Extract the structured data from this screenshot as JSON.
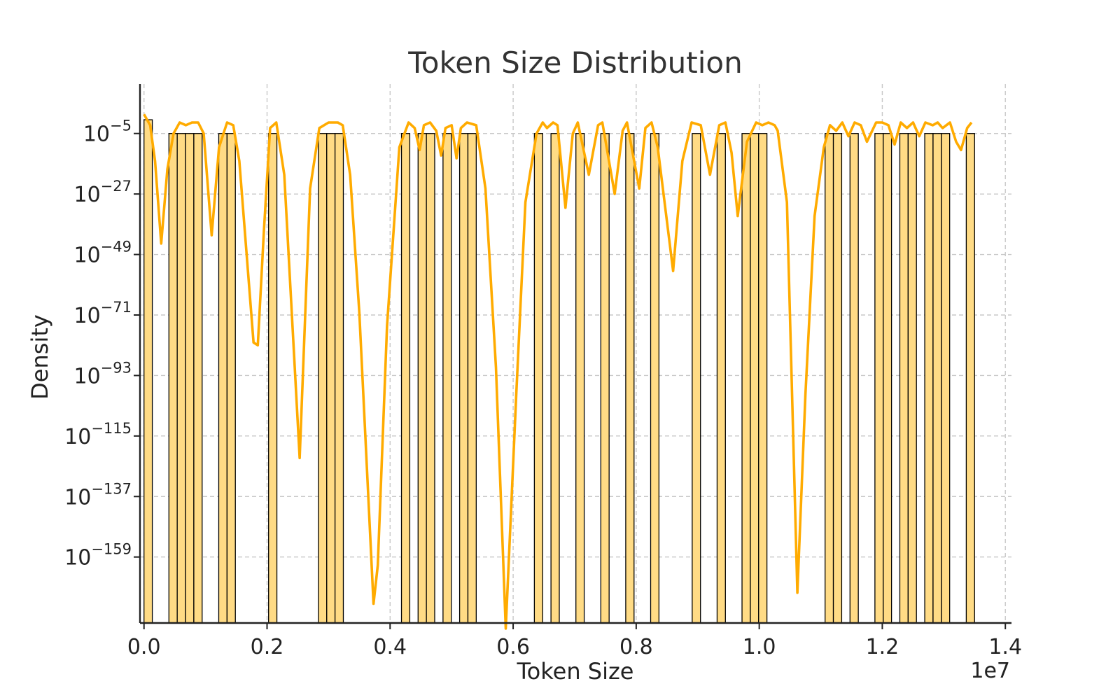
{
  "chart_data": {
    "type": "bar",
    "title": "Token Size Distribution",
    "xlabel": "Token Size",
    "ylabel": "Density",
    "x_offset_label": "1e7",
    "xlim": [
      -65000,
      14100000
    ],
    "ylog_exponent_range": [
      -183,
      13
    ],
    "yscale": "log",
    "grid": true,
    "x_ticks": [
      {
        "value": 0,
        "label": "0.0"
      },
      {
        "value": 2000000,
        "label": "0.2"
      },
      {
        "value": 4000000,
        "label": "0.4"
      },
      {
        "value": 6000000,
        "label": "0.6"
      },
      {
        "value": 8000000,
        "label": "0.8"
      },
      {
        "value": 10000000,
        "label": "1.0"
      },
      {
        "value": 12000000,
        "label": "1.2"
      },
      {
        "value": 14000000,
        "label": "1.4"
      }
    ],
    "y_ticks": [
      {
        "exponent": -5,
        "base": "10",
        "sup": "−5"
      },
      {
        "exponent": -27,
        "base": "10",
        "sup": "−27"
      },
      {
        "exponent": -49,
        "base": "10",
        "sup": "−49"
      },
      {
        "exponent": -71,
        "base": "10",
        "sup": "−71"
      },
      {
        "exponent": -93,
        "base": "10",
        "sup": "−93"
      },
      {
        "exponent": -115,
        "base": "10",
        "sup": "−115"
      },
      {
        "exponent": -137,
        "base": "10",
        "sup": "−137"
      },
      {
        "exponent": -159,
        "base": "10",
        "sup": "−159"
      }
    ],
    "histogram": {
      "name": "histogram",
      "color": "#ffdb85",
      "bin_width": 135000,
      "bins": [
        {
          "x0": 0,
          "density_exp": 0
        },
        {
          "x0": 405000,
          "density_exp": -5
        },
        {
          "x0": 540000,
          "density_exp": -5
        },
        {
          "x0": 675000,
          "density_exp": -5
        },
        {
          "x0": 810000,
          "density_exp": -5
        },
        {
          "x0": 1215000,
          "density_exp": -5
        },
        {
          "x0": 1350000,
          "density_exp": -5
        },
        {
          "x0": 2025000,
          "density_exp": -5
        },
        {
          "x0": 2835000,
          "density_exp": -5
        },
        {
          "x0": 2970000,
          "density_exp": -5
        },
        {
          "x0": 3105000,
          "density_exp": -5
        },
        {
          "x0": 4185000,
          "density_exp": -5
        },
        {
          "x0": 4455000,
          "density_exp": -5
        },
        {
          "x0": 4590000,
          "density_exp": -5
        },
        {
          "x0": 4860000,
          "density_exp": -5
        },
        {
          "x0": 5130000,
          "density_exp": -5
        },
        {
          "x0": 5265000,
          "density_exp": -5
        },
        {
          "x0": 6345000,
          "density_exp": -5
        },
        {
          "x0": 6615000,
          "density_exp": -5
        },
        {
          "x0": 7020000,
          "density_exp": -5
        },
        {
          "x0": 7425000,
          "density_exp": -5
        },
        {
          "x0": 7830000,
          "density_exp": -5
        },
        {
          "x0": 8235000,
          "density_exp": -5
        },
        {
          "x0": 8910000,
          "density_exp": -5
        },
        {
          "x0": 9315000,
          "density_exp": -5
        },
        {
          "x0": 9720000,
          "density_exp": -5
        },
        {
          "x0": 9855000,
          "density_exp": -5
        },
        {
          "x0": 9990000,
          "density_exp": -5
        },
        {
          "x0": 11070000,
          "density_exp": -5
        },
        {
          "x0": 11205000,
          "density_exp": -5
        },
        {
          "x0": 11475000,
          "density_exp": -5
        },
        {
          "x0": 11880000,
          "density_exp": -5
        },
        {
          "x0": 12015000,
          "density_exp": -5
        },
        {
          "x0": 12285000,
          "density_exp": -5
        },
        {
          "x0": 12420000,
          "density_exp": -5
        },
        {
          "x0": 12690000,
          "density_exp": -5
        },
        {
          "x0": 12825000,
          "density_exp": -5
        },
        {
          "x0": 12960000,
          "density_exp": -5
        },
        {
          "x0": 13365000,
          "density_exp": -5
        }
      ]
    },
    "series": [
      {
        "name": "kde",
        "color": "#ffab00",
        "points": [
          [
            0,
            2
          ],
          [
            100000,
            -2
          ],
          [
            180000,
            -15
          ],
          [
            280000,
            -45
          ],
          [
            380000,
            -18
          ],
          [
            480000,
            -5
          ],
          [
            580000,
            -1
          ],
          [
            680000,
            -2
          ],
          [
            780000,
            -1
          ],
          [
            880000,
            -1
          ],
          [
            970000,
            -5
          ],
          [
            1100000,
            -42
          ],
          [
            1220000,
            -10
          ],
          [
            1350000,
            -1
          ],
          [
            1450000,
            -2
          ],
          [
            1550000,
            -15
          ],
          [
            1780000,
            -81
          ],
          [
            1850000,
            -82
          ],
          [
            1950000,
            -40
          ],
          [
            2050000,
            -3
          ],
          [
            2150000,
            -1
          ],
          [
            2280000,
            -20
          ],
          [
            2530000,
            -123
          ],
          [
            2700000,
            -25
          ],
          [
            2850000,
            -3
          ],
          [
            3000000,
            -1
          ],
          [
            3150000,
            -1
          ],
          [
            3230000,
            -2
          ],
          [
            3350000,
            -20
          ],
          [
            3500000,
            -70
          ],
          [
            3730000,
            -176
          ],
          [
            3800000,
            -162
          ],
          [
            3950000,
            -75
          ],
          [
            4150000,
            -10
          ],
          [
            4300000,
            -1
          ],
          [
            4400000,
            -3
          ],
          [
            4480000,
            -11
          ],
          [
            4550000,
            -2
          ],
          [
            4650000,
            -1
          ],
          [
            4750000,
            -4
          ],
          [
            4830000,
            -13
          ],
          [
            4900000,
            -3
          ],
          [
            5000000,
            -2
          ],
          [
            5080000,
            -14
          ],
          [
            5150000,
            -3
          ],
          [
            5250000,
            -1
          ],
          [
            5400000,
            -2
          ],
          [
            5550000,
            -25
          ],
          [
            5720000,
            -90
          ],
          [
            5880000,
            -185
          ],
          [
            6050000,
            -100
          ],
          [
            6200000,
            -30
          ],
          [
            6380000,
            -5
          ],
          [
            6480000,
            -1
          ],
          [
            6550000,
            -3
          ],
          [
            6650000,
            -1
          ],
          [
            6720000,
            -2
          ],
          [
            6850000,
            -32
          ],
          [
            6970000,
            -5
          ],
          [
            7050000,
            -1
          ],
          [
            7230000,
            -20
          ],
          [
            7380000,
            -2
          ],
          [
            7450000,
            -1
          ],
          [
            7650000,
            -27
          ],
          [
            7780000,
            -4
          ],
          [
            7850000,
            -1
          ],
          [
            8050000,
            -25
          ],
          [
            8150000,
            -3
          ],
          [
            8250000,
            -1
          ],
          [
            8350000,
            -10
          ],
          [
            8600000,
            -55
          ],
          [
            8750000,
            -15
          ],
          [
            8900000,
            -1
          ],
          [
            9050000,
            -2
          ],
          [
            9200000,
            -20
          ],
          [
            9350000,
            -2
          ],
          [
            9450000,
            -1
          ],
          [
            9550000,
            -12
          ],
          [
            9650000,
            -35
          ],
          [
            9800000,
            -8
          ],
          [
            9950000,
            -1
          ],
          [
            10050000,
            -2
          ],
          [
            10150000,
            -1
          ],
          [
            10250000,
            -2
          ],
          [
            10300000,
            -4
          ],
          [
            10450000,
            -30
          ],
          [
            10620000,
            -172
          ],
          [
            10750000,
            -100
          ],
          [
            10900000,
            -35
          ],
          [
            11050000,
            -10
          ],
          [
            11150000,
            -2
          ],
          [
            11250000,
            -4
          ],
          [
            11350000,
            -1
          ],
          [
            11450000,
            -6
          ],
          [
            11550000,
            -1
          ],
          [
            11650000,
            -2
          ],
          [
            11750000,
            -8
          ],
          [
            11900000,
            -1
          ],
          [
            12000000,
            -1
          ],
          [
            12100000,
            -2
          ],
          [
            12200000,
            -9
          ],
          [
            12300000,
            -1
          ],
          [
            12400000,
            -3
          ],
          [
            12500000,
            -1
          ],
          [
            12600000,
            -6
          ],
          [
            12700000,
            -1
          ],
          [
            12820000,
            -2
          ],
          [
            12900000,
            -1
          ],
          [
            12980000,
            -3
          ],
          [
            13100000,
            -1
          ],
          [
            13200000,
            -8
          ],
          [
            13280000,
            -11
          ],
          [
            13380000,
            -3
          ],
          [
            13450000,
            -1
          ]
        ]
      }
    ]
  }
}
